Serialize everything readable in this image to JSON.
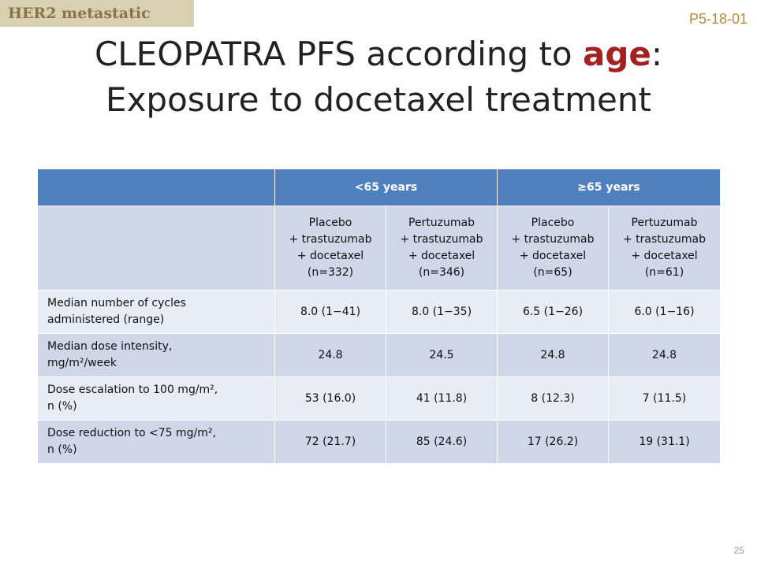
{
  "tag": "HER2 metastatic",
  "code": "P5-18-01",
  "title": {
    "line1_before": "CLEOPATRA PFS according to ",
    "line1_accent": "age",
    "line1_after": ":",
    "line2": "Exposure to docetaxel treatment"
  },
  "table": {
    "group_headers": [
      "",
      "<65 years",
      "≥65 years"
    ],
    "arms": [
      {
        "line1": "Placebo",
        "line2": "+ trastuzumab",
        "line3": "+ docetaxel",
        "line4": "(n=332)"
      },
      {
        "line1": "Pertuzumab",
        "line2": "+ trastuzumab",
        "line3": "+ docetaxel",
        "line4": "(n=346)"
      },
      {
        "line1": "Placebo",
        "line2": "+ trastuzumab",
        "line3": "+ docetaxel",
        "line4": "(n=65)"
      },
      {
        "line1": "Pertuzumab",
        "line2": "+ trastuzumab",
        "line3": "+ docetaxel",
        "line4": "(n=61)"
      }
    ],
    "rows": [
      {
        "label_line1": "Median number of cycles",
        "label_line2": "administered (range)",
        "values": [
          "8.0 (1−41)",
          "8.0 (1−35)",
          "6.5 (1−26)",
          "6.0 (1−16)"
        ]
      },
      {
        "label_line1": "Median dose intensity,",
        "label_line2": "mg/m²/week",
        "values": [
          "24.8",
          "24.5",
          "24.8",
          "24.8"
        ]
      },
      {
        "label_line1": "Dose escalation to 100 mg/m²,",
        "label_line2": "n (%)",
        "values": [
          "53 (16.0)",
          "41 (11.8)",
          "8 (12.3)",
          "7 (11.5)"
        ]
      },
      {
        "label_line1": "Dose reduction to <75 mg/m²,",
        "label_line2": "n (%)",
        "values": [
          "72 (21.7)",
          "85 (24.6)",
          "17 (26.2)",
          "19 (31.1)"
        ]
      }
    ]
  },
  "page_number": "25"
}
